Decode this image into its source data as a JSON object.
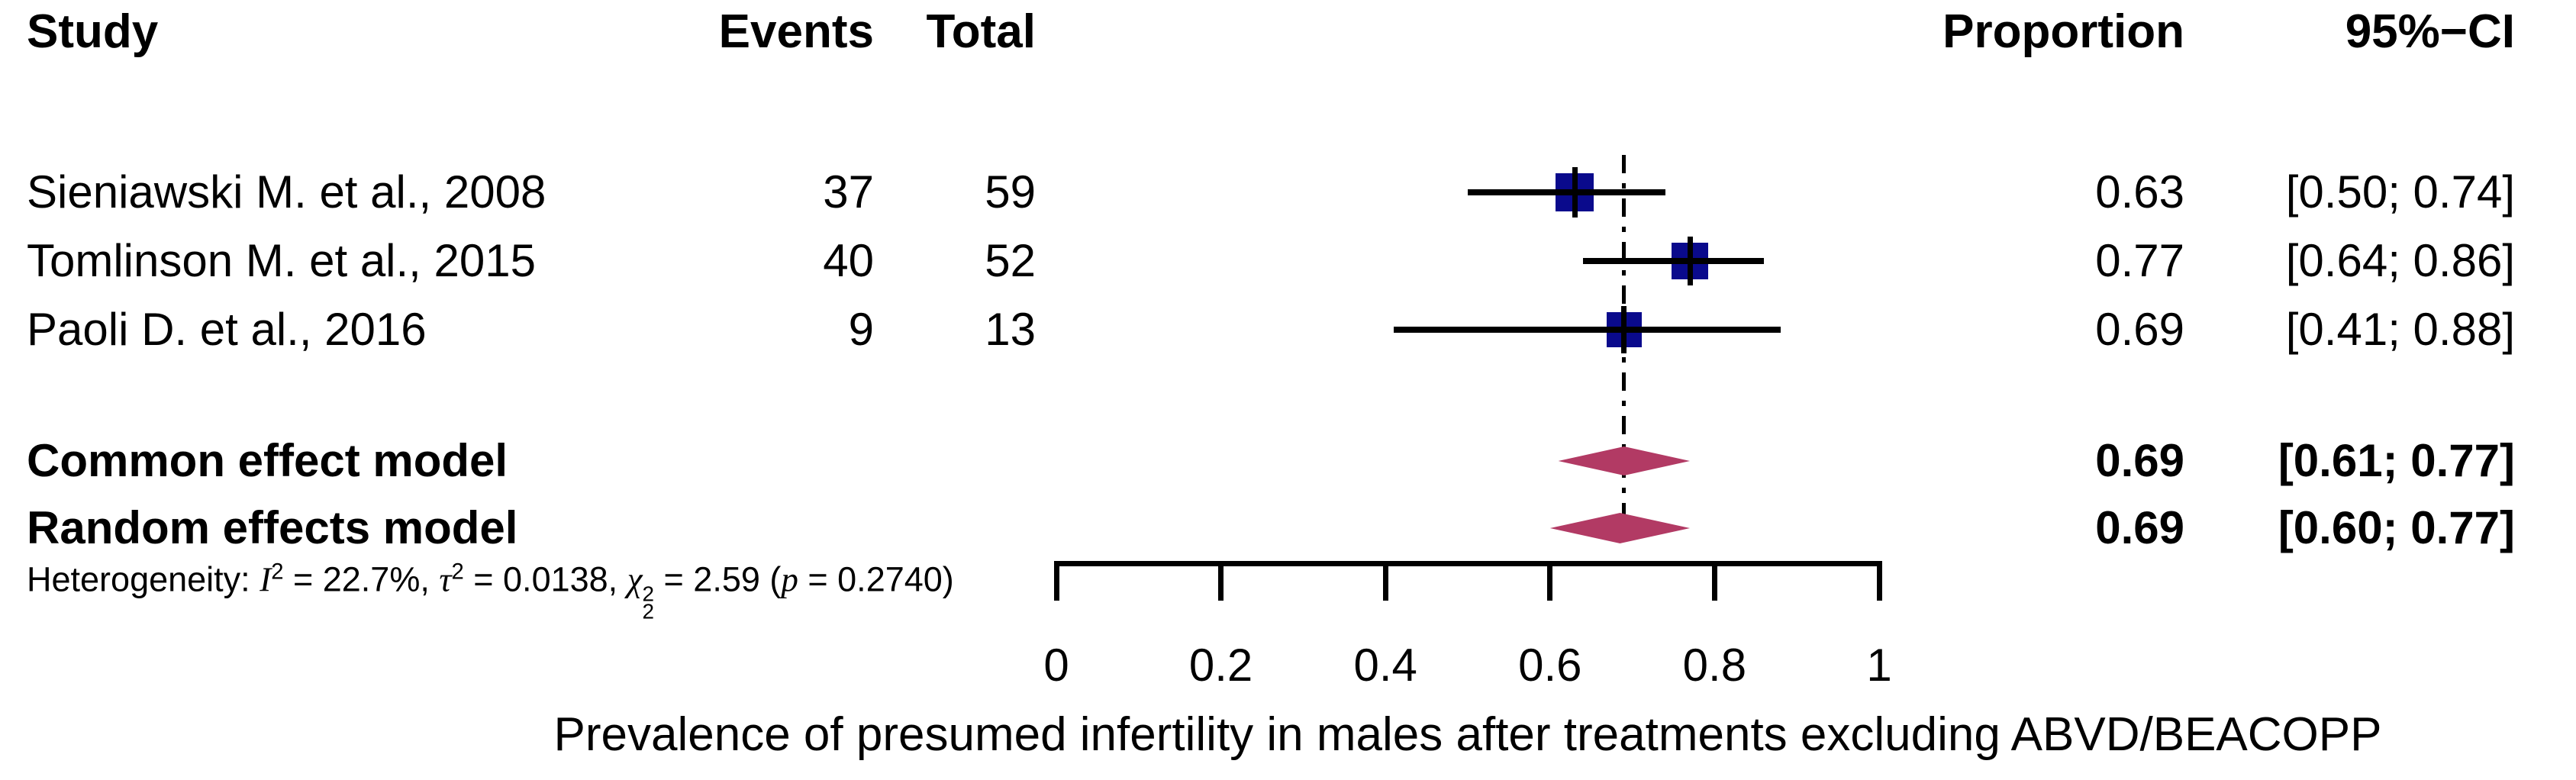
{
  "header": {
    "study": "Study",
    "events": "Events",
    "total": "Total",
    "proportion": "Proportion",
    "ci": "95%−CI"
  },
  "chart_data": {
    "type": "forest",
    "studies": [
      {
        "name": "Sieniawski M. et al., 2008",
        "events": "37",
        "total": "59",
        "proportion": "0.63",
        "ci_text": "[0.50; 0.74]",
        "est": 0.63,
        "lo": 0.5,
        "hi": 0.74
      },
      {
        "name": "Tomlinson M. et al., 2015",
        "events": "40",
        "total": "52",
        "proportion": "0.77",
        "ci_text": "[0.64; 0.86]",
        "est": 0.77,
        "lo": 0.64,
        "hi": 0.86
      },
      {
        "name": "Paoli D. et al., 2016",
        "events": "9",
        "total": "13",
        "proportion": "0.69",
        "ci_text": "[0.41; 0.88]",
        "est": 0.69,
        "lo": 0.41,
        "hi": 0.88
      }
    ],
    "models": [
      {
        "name": "Common effect model",
        "proportion": "0.69",
        "ci_text": "[0.61; 0.77]",
        "est": 0.69,
        "lo": 0.61,
        "hi": 0.77
      },
      {
        "name": "Random effects model",
        "proportion": "0.69",
        "ci_text": "[0.60; 0.77]",
        "est": 0.69,
        "lo": 0.6,
        "hi": 0.77
      }
    ],
    "heterogeneity": {
      "prefix": "Heterogeneity: ",
      "i_symbol": "I",
      "i_sup": "2",
      "seg1": " = 22.7%, ",
      "tau_symbol": "τ",
      "tau_sup": "2",
      "seg2": " = 0.0138, ",
      "chi_symbol": "χ",
      "chi_sup": "2",
      "chi_sub": "2",
      "seg3": " = 2.59 (",
      "p_symbol": "p",
      "seg4": " = 0.2740)"
    },
    "axis": {
      "min": 0,
      "max": 1,
      "ticks": [
        0,
        0.2,
        0.4,
        0.6,
        0.8,
        1
      ],
      "tick_labels": [
        "0",
        "0.2",
        "0.4",
        "0.6",
        "0.8",
        "1"
      ],
      "xlabel": "Prevalence of presumed infertility in males after treatments excluding ABVD/BEACOPP",
      "ref_line": 0.69
    },
    "colors": {
      "square": "#0A0A8C",
      "diamond": "#B23A64",
      "line": "#000000",
      "text": "#000000"
    }
  }
}
